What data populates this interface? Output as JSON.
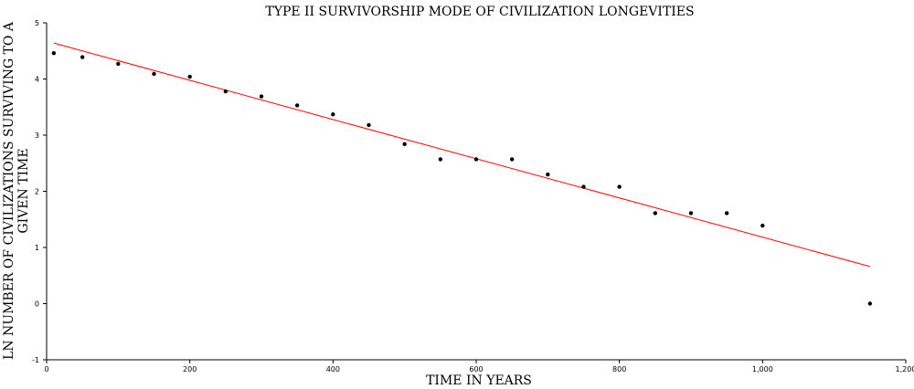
{
  "chart_data": {
    "type": "scatter",
    "title": "TYPE II SURVIVORSHIP MODE OF CIVILIZATION LONGEVITIES",
    "xlabel": "TIME IN YEARS",
    "ylabel_lines": [
      "LN NUMBER OF CIVILIZATIONS SURVIVING TO A",
      "GIVEN TIME"
    ],
    "xlim": [
      0,
      1200
    ],
    "ylim": [
      -1,
      5
    ],
    "x_ticks": [
      0,
      200,
      400,
      600,
      800,
      1000,
      1200
    ],
    "x_tick_labels": [
      "0",
      "200",
      "400",
      "600",
      "800",
      "1,000",
      "1,200"
    ],
    "y_ticks": [
      -1,
      0,
      1,
      2,
      3,
      4,
      5
    ],
    "y_tick_labels": [
      "-1",
      "0",
      "1",
      "2",
      "3",
      "4",
      "5"
    ],
    "grid": false,
    "legend": "none",
    "series": [
      {
        "type": "scatter",
        "color": "#000000",
        "x": [
          10,
          50,
          100,
          150,
          200,
          250,
          300,
          350,
          400,
          450,
          500,
          550,
          600,
          650,
          700,
          750,
          800,
          850,
          900,
          950,
          1000,
          1150
        ],
        "y": [
          4.46,
          4.39,
          4.27,
          4.09,
          4.04,
          3.78,
          3.69,
          3.53,
          3.37,
          3.18,
          2.84,
          2.57,
          2.57,
          2.57,
          2.3,
          2.08,
          2.08,
          1.61,
          1.61,
          1.61,
          1.39,
          0.0
        ]
      },
      {
        "type": "line",
        "color": "#ff0000",
        "x": [
          10,
          1150
        ],
        "y": [
          4.64,
          0.66
        ]
      }
    ]
  }
}
